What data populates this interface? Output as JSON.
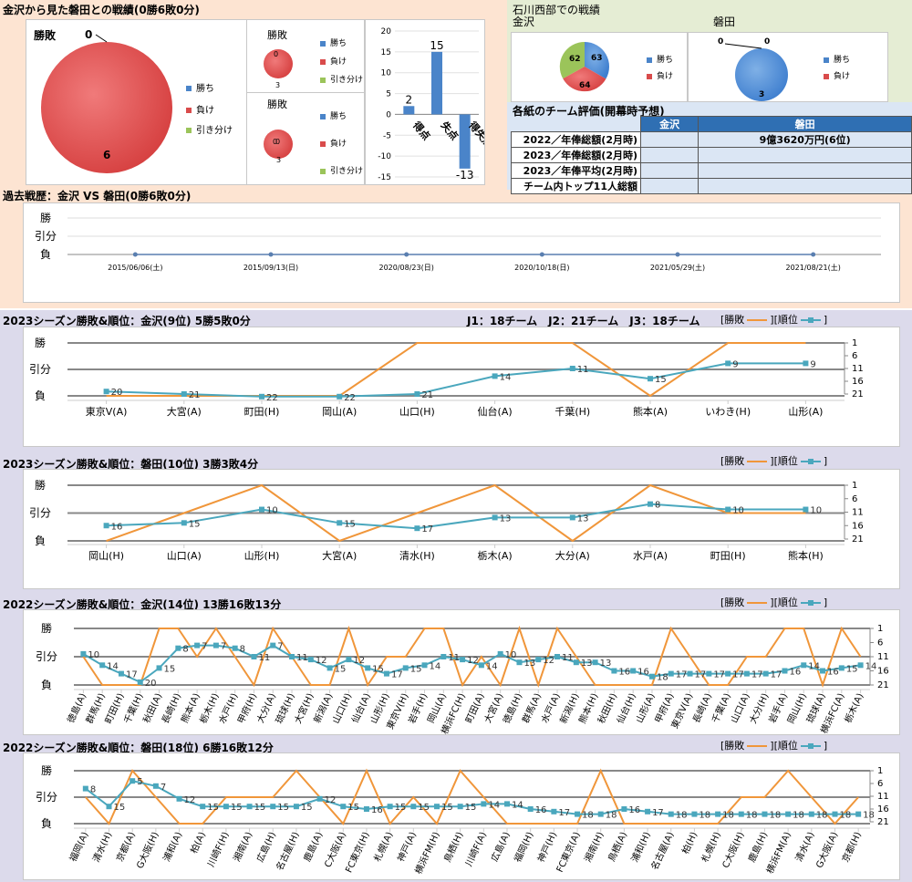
{
  "colors": {
    "win": "#4a84c9",
    "loss": "#d94b4b",
    "draw": "#9bc45a",
    "orange": "#f0963a",
    "teal": "#4aa7bd",
    "peach": "#fde4d2",
    "lavender": "#dcdaeb",
    "green_bg": "#e5edd4"
  },
  "header": {
    "title": "金沢から見た磐田との戦績(0勝6敗0分)",
    "west_title": "石川西部での戦績",
    "kanazawa": "金沢",
    "iwata": "磐田",
    "eval_title": "各紙のチーム評価(開幕時予想)",
    "past_title": "過去戦歴：金沢 VS 磐田(0勝6敗0分)",
    "s1_title": "2023シーズン勝敗&順位：金沢(9位) 5勝5敗0分",
    "s1_note": "J1：18チーム　J2：21チーム　J3：18チーム",
    "s2_title": "2023シーズン勝敗&順位：磐田(10位) 3勝3敗4分",
    "s3_title": "2022シーズン勝敗&順位：金沢(14位) 13勝16敗13分",
    "s4_title": "2022シーズン勝敗&順位：磐田(18位) 6勝16敗12分"
  },
  "legend": {
    "win": "勝ち",
    "loss": "負け",
    "draw": "引き分け",
    "result_label": "勝敗"
  },
  "line_legend": {
    "result": "[勝敗",
    "rank": "][順位"
  },
  "y_labels": {
    "win": "勝",
    "draw": "引分",
    "loss": "負"
  },
  "rank_ticks": [
    "1",
    "6",
    "11",
    "16",
    "21"
  ],
  "eval_table": {
    "headers": [
      "金沢",
      "磐田"
    ],
    "rows": [
      {
        "label": "2022／年俸総額(2月時)",
        "kanazawa": "",
        "iwata": "9億3620万円(6位)"
      },
      {
        "label": "2023／年俸総額(2月時)",
        "kanazawa": "",
        "iwata": ""
      },
      {
        "label": "2023／年俸平均(2月時)",
        "kanazawa": "",
        "iwata": ""
      },
      {
        "label": "チーム内トップ11人総額",
        "kanazawa": "",
        "iwata": ""
      }
    ]
  },
  "chart_data": [
    {
      "type": "pie",
      "title": "勝敗",
      "categories": [
        "勝ち",
        "負け",
        "引き分け"
      ],
      "values": [
        0,
        6,
        0
      ],
      "labels": [
        "0",
        "6"
      ]
    },
    {
      "type": "pie",
      "title": "勝敗",
      "categories": [
        "勝ち",
        "負け",
        "引き分け"
      ],
      "values": [
        0,
        3,
        0
      ],
      "labels": [
        "0",
        "3"
      ]
    },
    {
      "type": "pie",
      "title": "勝敗",
      "categories": [
        "勝ち",
        "負け",
        "引き分け"
      ],
      "values": [
        0,
        3,
        0
      ],
      "labels": [
        "0",
        "0",
        "3"
      ]
    },
    {
      "type": "bar",
      "categories": [
        "得点",
        "失点",
        "得失点差"
      ],
      "values": [
        2,
        15,
        -13
      ],
      "ylim": [
        -15,
        20
      ],
      "yticks": [
        20,
        15,
        10,
        5,
        0,
        -5,
        -10,
        -15
      ]
    },
    {
      "type": "pie",
      "title": "金沢",
      "categories": [
        "勝ち",
        "負け",
        "引き分け"
      ],
      "values": [
        63,
        64,
        62
      ]
    },
    {
      "type": "pie",
      "title": "磐田",
      "categories": [
        "勝ち",
        "負け",
        "引き分け"
      ],
      "values": [
        0,
        3,
        0
      ],
      "labels": [
        "0",
        "0",
        "3"
      ]
    },
    {
      "type": "line",
      "title": "過去戦歴",
      "categories": [
        "2015/06/06(土)",
        "2015/09/13(日)",
        "2020/08/23(日)",
        "2020/10/18(日)",
        "2021/05/29(土)",
        "2021/08/21(土)"
      ],
      "result": [
        "L",
        "L",
        "L",
        "L",
        "L",
        "L"
      ]
    },
    {
      "type": "line",
      "title": "2023 金沢",
      "categories": [
        "東京V(A)",
        "大宮(A)",
        "町田(H)",
        "岡山(A)",
        "山口(H)",
        "仙台(A)",
        "千葉(H)",
        "熊本(A)",
        "いわき(H)",
        "山形(A)"
      ],
      "result": [
        "L",
        "L",
        "L",
        "L",
        "W",
        "W",
        "W",
        "L",
        "W",
        "W"
      ],
      "rank": [
        20,
        21,
        22,
        22,
        21,
        14,
        11,
        15,
        9,
        9
      ]
    },
    {
      "type": "line",
      "title": "2023 磐田",
      "categories": [
        "岡山(H)",
        "山口(A)",
        "山形(H)",
        "大宮(A)",
        "清水(H)",
        "栃木(A)",
        "大分(A)",
        "水戸(A)",
        "町田(H)",
        "熊本(H)"
      ],
      "result": [
        "L",
        "D",
        "W",
        "L",
        "D",
        "W",
        "L",
        "W",
        "D",
        "D"
      ],
      "rank": [
        16,
        15,
        10,
        15,
        17,
        13,
        13,
        8,
        10,
        10
      ]
    },
    {
      "type": "line",
      "title": "2022 金沢",
      "categories": [
        "徳島(A)",
        "群馬(H)",
        "町田(H)",
        "千葉(H)",
        "秋田(A)",
        "長崎(H)",
        "熊本(A)",
        "栃木(H)",
        "水戸(H)",
        "甲府(H)",
        "大分(A)",
        "琉球(H)",
        "大宮(H)",
        "新潟(A)",
        "山口(H)",
        "仙台(A)",
        "山形(H)",
        "東京V(H)",
        "岩手(H)",
        "岡山(A)",
        "横浜FC(H)",
        "町田(A)",
        "大宮(A)",
        "徳島(H)",
        "群馬(A)",
        "水戸(A)",
        "新潟(H)",
        "熊本(H)",
        "秋田(H)",
        "仙台(H)",
        "山形(A)",
        "甲府(A)",
        "東京V(A)",
        "長崎(A)",
        "千葉(A)",
        "山口(A)",
        "大分(H)",
        "岩手(A)",
        "岡山(H)",
        "琉球(A)",
        "横浜FC(A)",
        "栃木(A)"
      ],
      "result": [
        "D",
        "L",
        "L",
        "L",
        "W",
        "W",
        "D",
        "W",
        "D",
        "L",
        "W",
        "D",
        "L",
        "L",
        "W",
        "L",
        "D",
        "D",
        "W",
        "W",
        "L",
        "D",
        "L",
        "W",
        "L",
        "W",
        "D",
        "L",
        "L",
        "L",
        "L",
        "W",
        "D",
        "L",
        "L",
        "D",
        "D",
        "W",
        "W",
        "L",
        "W",
        "D"
      ],
      "rank": [
        10,
        14,
        17,
        20,
        15,
        8,
        7,
        7,
        8,
        11,
        7,
        11,
        12,
        15,
        12,
        15,
        17,
        15,
        14,
        11,
        12,
        14,
        10,
        13,
        12,
        11,
        13,
        13,
        16,
        16,
        18,
        17,
        17,
        17,
        17,
        17,
        17,
        16,
        14,
        16,
        15,
        14
      ],
      "labels": [
        "10",
        "14",
        "17",
        "20",
        "15",
        "8",
        "7",
        "7",
        "8",
        "11",
        "7",
        "11",
        "12",
        "15",
        "12",
        "15",
        "17",
        "15",
        "14",
        "11",
        "12",
        "14",
        "10",
        "13",
        "12",
        "11",
        "13",
        "13",
        "16",
        "16",
        "18",
        "17",
        "17",
        "17",
        "17",
        "17",
        "17",
        "16",
        "14",
        "16",
        "15",
        "14"
      ]
    },
    {
      "type": "line",
      "title": "2022 磐田",
      "categories": [
        "福岡(A)",
        "清水(H)",
        "京都(A)",
        "G大阪(H)",
        "浦和(A)",
        "柏(A)",
        "川崎F(H)",
        "湘南(A)",
        "広島(H)",
        "名古屋(H)",
        "鹿島(A)",
        "C大阪(A)",
        "FC東京(H)",
        "札幌(A)",
        "神戸(A)",
        "横浜FM(H)",
        "鳥栖(H)",
        "川崎F(A)",
        "広島(A)",
        "福岡(H)",
        "神戸(H)",
        "FC東京(A)",
        "湘南(H)",
        "鳥栖(A)",
        "浦和(H)",
        "名古屋(A)",
        "柏(H)",
        "札幌(H)",
        "C大阪(H)",
        "鹿島(H)",
        "横浜FM(A)",
        "清水(A)",
        "G大阪(A)",
        "京都(H)"
      ],
      "result": [
        "D",
        "L",
        "W",
        "D",
        "L",
        "L",
        "D",
        "D",
        "D",
        "W",
        "D",
        "L",
        "W",
        "L",
        "D",
        "L",
        "W",
        "D",
        "L",
        "L",
        "L",
        "L",
        "W",
        "L",
        "L",
        "L",
        "L",
        "L",
        "D",
        "D",
        "W",
        "D",
        "L",
        "D"
      ],
      "rank": [
        8,
        15,
        5,
        7,
        12,
        15,
        15,
        15,
        15,
        15,
        12,
        15,
        16,
        15,
        15,
        15,
        15,
        14,
        14,
        16,
        17,
        18,
        18,
        16,
        17,
        18,
        18,
        18,
        18,
        18,
        18,
        18,
        18,
        18
      ]
    }
  ]
}
